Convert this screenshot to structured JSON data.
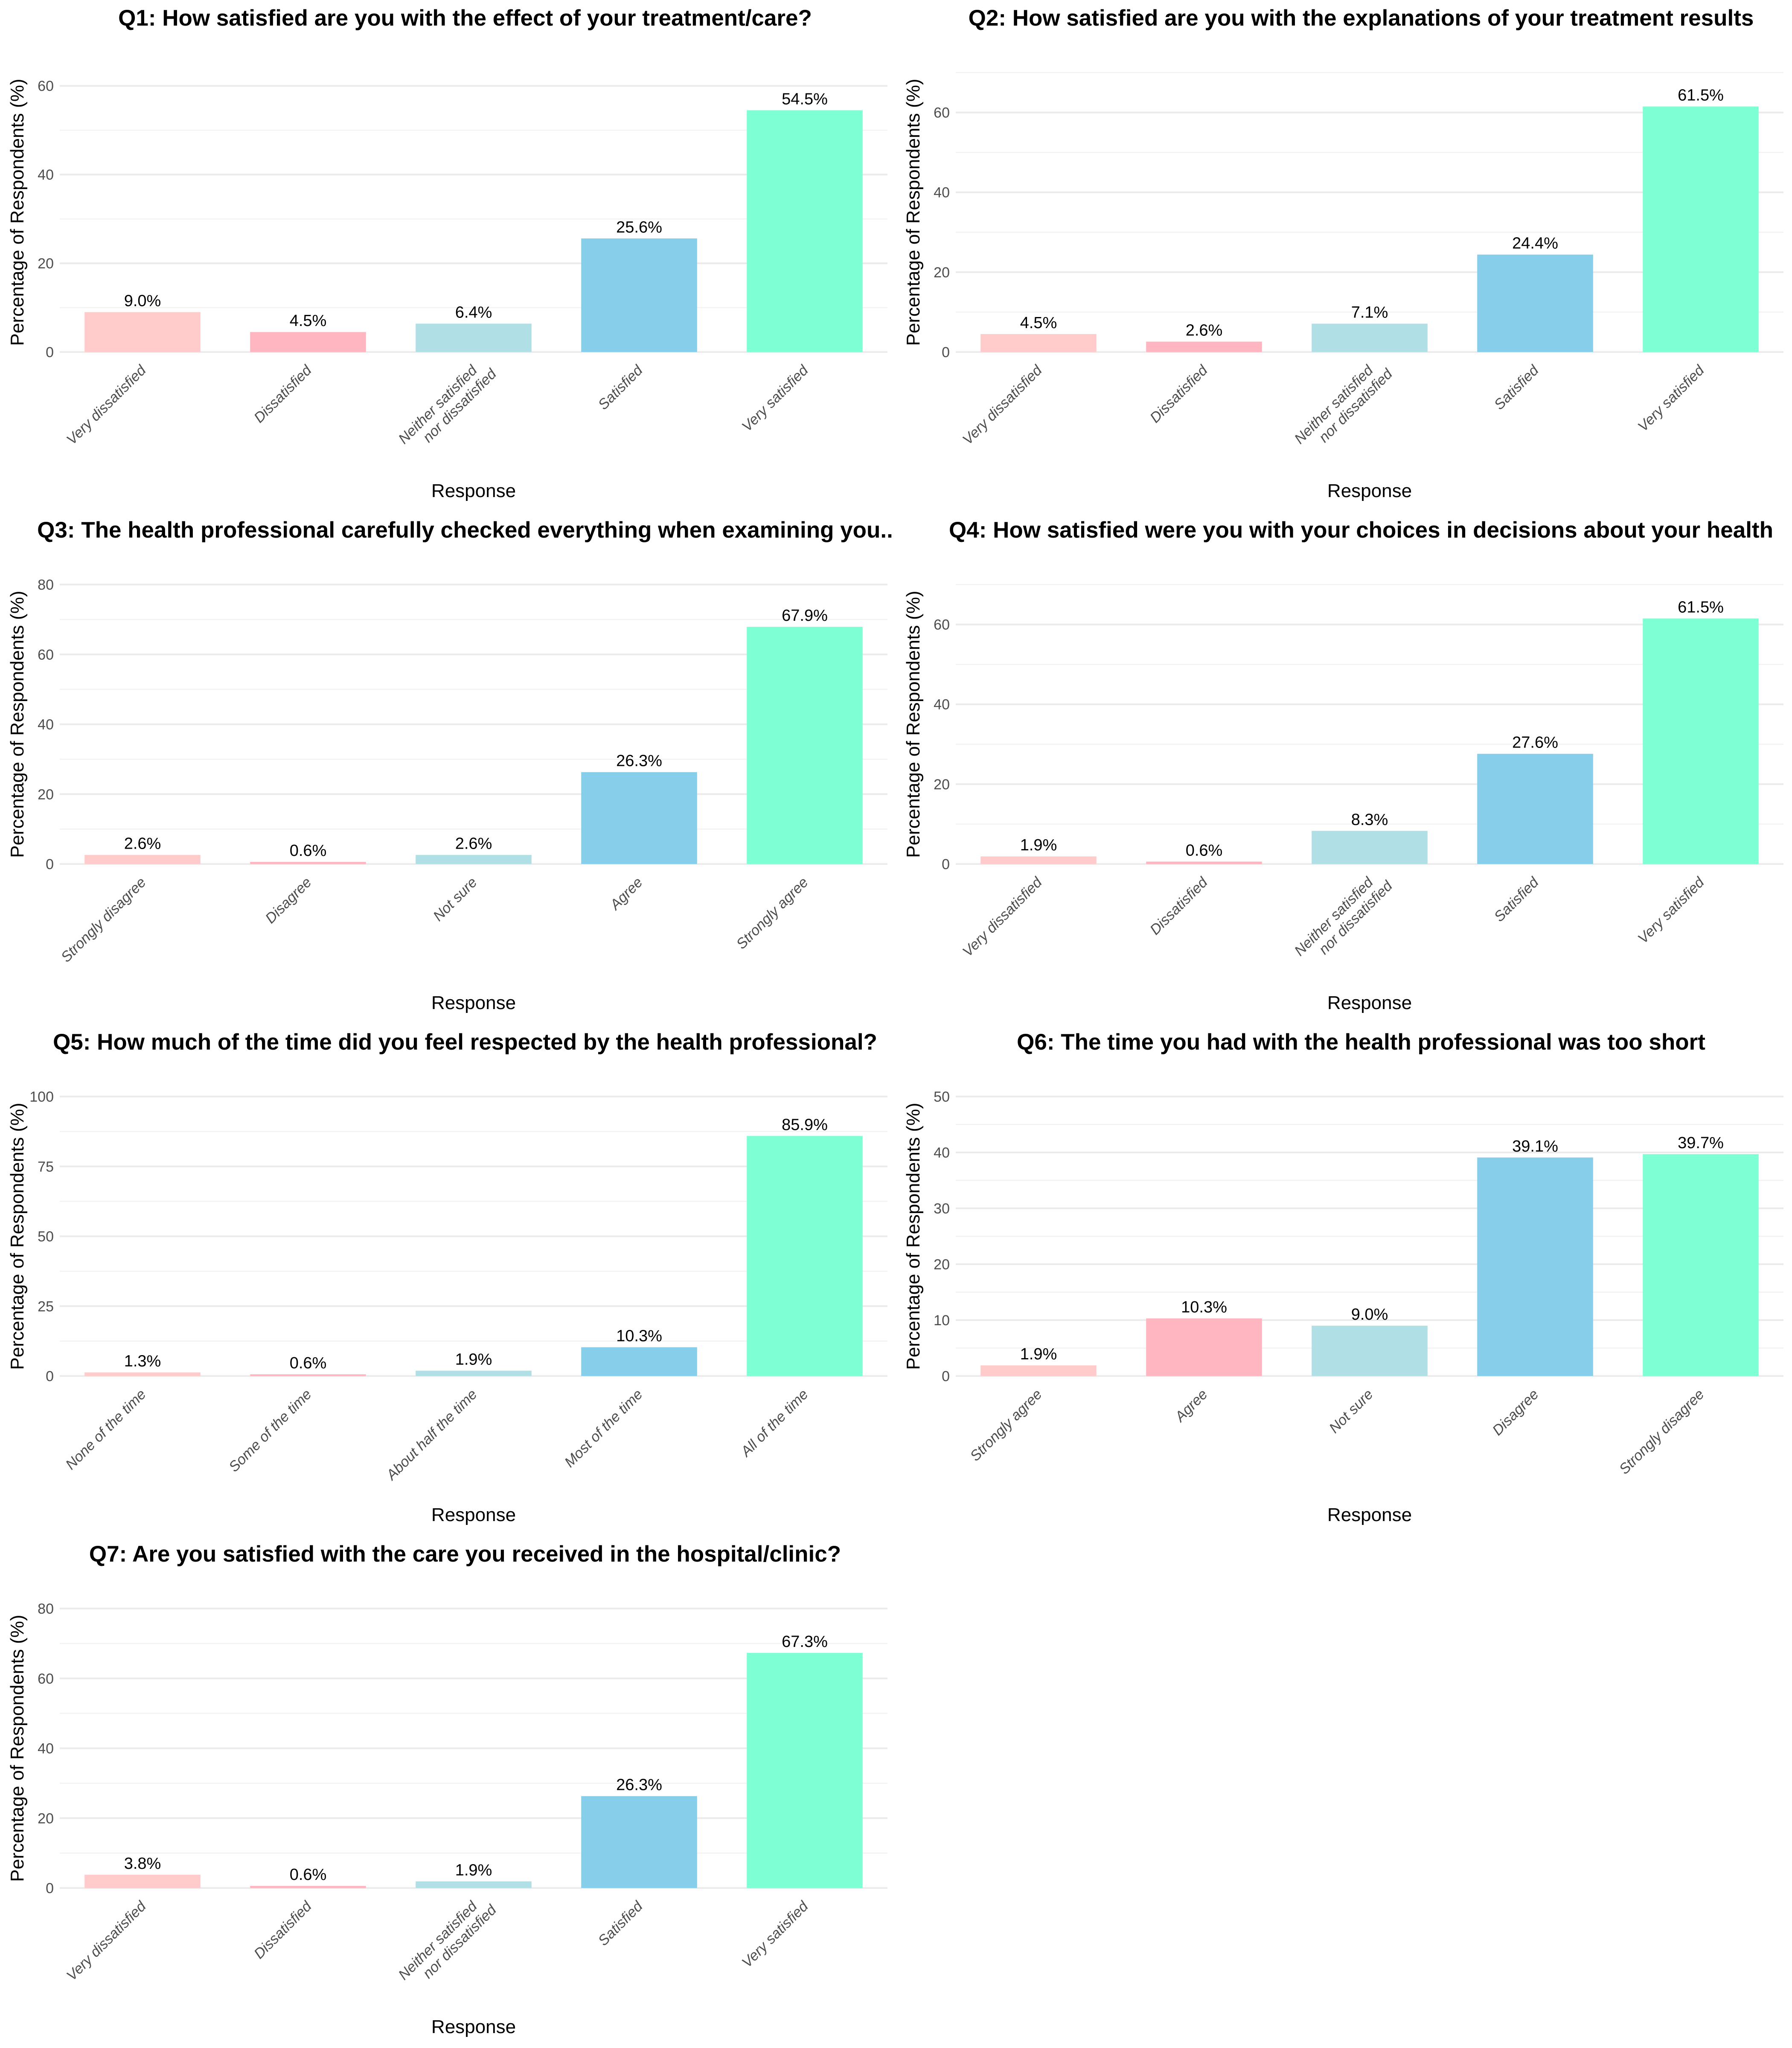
{
  "chart_data": [
    {
      "type": "bar",
      "title": "Q1: How satisfied are you with the effect of your treatment/care?",
      "xlabel": "Response",
      "ylabel": "Percentage of Respondents (%)",
      "categories": [
        "Very dissatisfied",
        "Dissatisfied",
        "Neither satisfied\nnor dissatisfied",
        "Satisfied",
        "Very satisfied"
      ],
      "values": [
        9.0,
        4.5,
        6.4,
        25.6,
        54.5
      ],
      "value_labels": [
        "9.0%",
        "4.5%",
        "6.4%",
        "25.6%",
        "54.5%"
      ],
      "yticks": [
        0,
        20,
        40,
        60
      ],
      "ylim": [
        0,
        63
      ],
      "grid": true
    },
    {
      "type": "bar",
      "title": "Q2: How satisfied are you with the explanations of your treatment results",
      "xlabel": "Response",
      "ylabel": "Percentage of Respondents (%)",
      "categories": [
        "Very dissatisfied",
        "Dissatisfied",
        "Neither satisfied\nnor dissatisfied",
        "Satisfied",
        "Very satisfied"
      ],
      "values": [
        4.5,
        2.6,
        7.1,
        24.4,
        61.5
      ],
      "value_labels": [
        "4.5%",
        "2.6%",
        "7.1%",
        "24.4%",
        "61.5%"
      ],
      "yticks": [
        0,
        20,
        40,
        60
      ],
      "ylim": [
        0,
        70
      ],
      "grid": true
    },
    {
      "type": "bar",
      "title": "Q3: The health professional carefully checked everything when examining you..",
      "xlabel": "Response",
      "ylabel": "Percentage of Respondents (%)",
      "categories": [
        "Strongly disagree",
        "Disagree",
        "Not sure",
        "Agree",
        "Strongly agree"
      ],
      "values": [
        2.6,
        0.6,
        2.6,
        26.3,
        67.9
      ],
      "value_labels": [
        "2.6%",
        "0.6%",
        "2.6%",
        "26.3%",
        "67.9%"
      ],
      "yticks": [
        0,
        20,
        40,
        60,
        80
      ],
      "ylim": [
        0,
        80
      ],
      "grid": true
    },
    {
      "type": "bar",
      "title": "Q4: How satisfied were you with your choices in decisions about your health",
      "xlabel": "Response",
      "ylabel": "Percentage of Respondents (%)",
      "categories": [
        "Very dissatisfied",
        "Dissatisfied",
        "Neither satisfied\nnor dissatisfied",
        "Satisfied",
        "Very satisfied"
      ],
      "values": [
        1.9,
        0.6,
        8.3,
        27.6,
        61.5
      ],
      "value_labels": [
        "1.9%",
        "0.6%",
        "8.3%",
        "27.6%",
        "61.5%"
      ],
      "yticks": [
        0,
        20,
        40,
        60
      ],
      "ylim": [
        0,
        70
      ],
      "grid": true
    },
    {
      "type": "bar",
      "title": "Q5: How much of the time did you feel respected by the health professional?",
      "xlabel": "Response",
      "ylabel": "Percentage of Respondents (%)",
      "categories": [
        "None of the time",
        "Some of the time",
        "About half the time",
        "Most of the time",
        "All of the time"
      ],
      "values": [
        1.3,
        0.6,
        1.9,
        10.3,
        85.9
      ],
      "value_labels": [
        "1.3%",
        "0.6%",
        "1.9%",
        "10.3%",
        "85.9%"
      ],
      "yticks": [
        0,
        25,
        50,
        75,
        100
      ],
      "ylim": [
        0,
        100
      ],
      "grid": true
    },
    {
      "type": "bar",
      "title": "Q6: The time you had with the health professional was too short",
      "xlabel": "Response",
      "ylabel": "Percentage of Respondents (%)",
      "categories": [
        "Strongly agree",
        "Agree",
        "Not sure",
        "Disagree",
        "Strongly disagree"
      ],
      "values": [
        1.9,
        10.3,
        9.0,
        39.1,
        39.7
      ],
      "value_labels": [
        "1.9%",
        "10.3%",
        "9.0%",
        "39.1%",
        "39.7%"
      ],
      "yticks": [
        0,
        10,
        20,
        30,
        40,
        50
      ],
      "ylim": [
        0,
        50
      ],
      "grid": true
    },
    {
      "type": "bar",
      "title": "Q7: Are you satisfied with the care you received in the hospital/clinic?",
      "xlabel": "Response",
      "ylabel": "Percentage of Respondents (%)",
      "categories": [
        "Very dissatisfied",
        "Dissatisfied",
        "Neither satisfied\nnor dissatisfied",
        "Satisfied",
        "Very satisfied"
      ],
      "values": [
        3.8,
        0.6,
        1.9,
        26.3,
        67.3
      ],
      "value_labels": [
        "3.8%",
        "0.6%",
        "1.9%",
        "26.3%",
        "67.3%"
      ],
      "yticks": [
        0,
        20,
        40,
        60,
        80
      ],
      "ylim": [
        0,
        80
      ],
      "grid": true
    }
  ],
  "colors": [
    "#FFCCCB",
    "#FFB6C1",
    "#B0E0E6",
    "#87CEEB",
    "#7FFFD4"
  ]
}
